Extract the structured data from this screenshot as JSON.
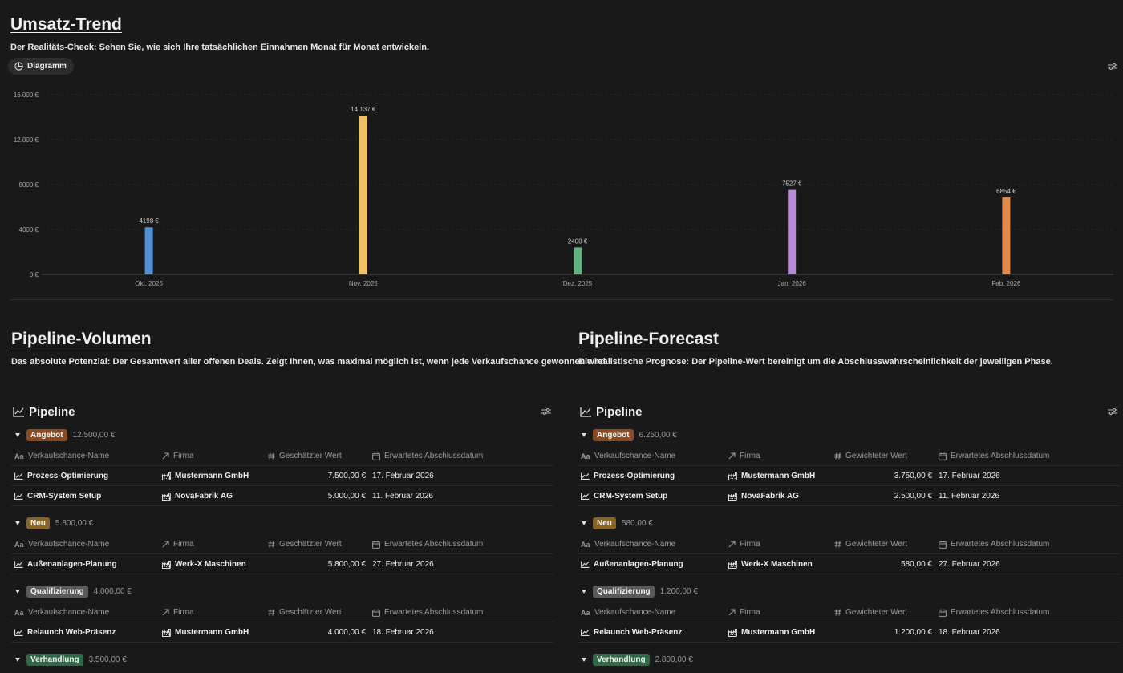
{
  "trend": {
    "title": "Umsatz-Trend",
    "description": "Der Realitäts-Check: Sehen Sie, wie sich Ihre tatsächlichen Einnahmen Monat für Monat entwickeln.",
    "view_label": "Diagramm"
  },
  "chart_data": {
    "type": "bar",
    "categories": [
      "Okt. 2025",
      "Nov. 2025",
      "Dez. 2025",
      "Jan. 2026",
      "Feb. 2026"
    ],
    "values": [
      4198,
      14137,
      2400,
      7527,
      6854
    ],
    "value_labels": [
      "4198 €",
      "14.137 €",
      "2400 €",
      "7527 €",
      "6854 €"
    ],
    "colors": [
      "#4e8fd8",
      "#f0c062",
      "#62b27f",
      "#b98ad9",
      "#e08b4c"
    ],
    "yticks": [
      0,
      4000,
      8000,
      12000,
      16000
    ],
    "ytick_labels": [
      "0 €",
      "4000 €",
      "8000 €",
      "12.000 €",
      "16.000 €"
    ],
    "ylim": [
      0,
      16000
    ],
    "grid": true,
    "title": "",
    "xlabel": "",
    "ylabel": ""
  },
  "volumen": {
    "title": "Pipeline-Volumen",
    "description": "Das absolute Potenzial: Der Gesamtwert aller offenen Deals. Zeigt Ihnen, was maximal möglich ist, wenn jede Verkaufschance gewonnen wird.",
    "board_title": "Pipeline",
    "columns": [
      "Verkaufschance-Name",
      "Firma",
      "Geschätzter Wert",
      "Erwartetes Abschlussdatum"
    ],
    "groups": [
      {
        "label": "Angebot",
        "color": "#8c4a21",
        "sum": "12.500,00 €",
        "rows": [
          {
            "name": "Prozess-Optimierung",
            "firma": "Mustermann GmbH",
            "wert": "7.500,00 €",
            "datum": "17. Februar 2026"
          },
          {
            "name": "CRM-System Setup",
            "firma": "NovaFabrik AG",
            "wert": "5.000,00 €",
            "datum": "11. Februar 2026"
          }
        ]
      },
      {
        "label": "Neu",
        "color": "#8a6425",
        "sum": "5.800,00 €",
        "rows": [
          {
            "name": "Außenanlagen-Planung",
            "firma": "Werk-X Maschinen",
            "wert": "5.800,00 €",
            "datum": "27. Februar 2026"
          }
        ]
      },
      {
        "label": "Qualifizierung",
        "color": "#5a5a5a",
        "sum": "4.000,00 €",
        "rows": [
          {
            "name": "Relaunch Web-Präsenz",
            "firma": "Mustermann GmbH",
            "wert": "4.000,00 €",
            "datum": "18. Februar 2026"
          }
        ]
      },
      {
        "label": "Verhandlung",
        "color": "#2f6a47",
        "sum": "3.500,00 €",
        "rows": []
      }
    ]
  },
  "forecast": {
    "title": "Pipeline-Forecast",
    "description": "Die realistische Prognose: Der Pipeline-Wert bereinigt um die Abschlusswahrscheinlichkeit der jeweiligen Phase.",
    "board_title": "Pipeline",
    "columns": [
      "Verkaufschance-Name",
      "Firma",
      "Gewichteter Wert",
      "Erwartetes Abschlussdatum"
    ],
    "groups": [
      {
        "label": "Angebot",
        "color": "#8c4a21",
        "sum": "6.250,00 €",
        "rows": [
          {
            "name": "Prozess-Optimierung",
            "firma": "Mustermann GmbH",
            "wert": "3.750,00 €",
            "datum": "17. Februar 2026"
          },
          {
            "name": "CRM-System Setup",
            "firma": "NovaFabrik AG",
            "wert": "2.500,00 €",
            "datum": "11. Februar 2026"
          }
        ]
      },
      {
        "label": "Neu",
        "color": "#8a6425",
        "sum": "580,00 €",
        "rows": [
          {
            "name": "Außenanlagen-Planung",
            "firma": "Werk-X Maschinen",
            "wert": "580,00 €",
            "datum": "27. Februar 2026"
          }
        ]
      },
      {
        "label": "Qualifizierung",
        "color": "#5a5a5a",
        "sum": "1.200,00 €",
        "rows": [
          {
            "name": "Relaunch Web-Präsenz",
            "firma": "Mustermann GmbH",
            "wert": "1.200,00 €",
            "datum": "18. Februar 2026"
          }
        ]
      },
      {
        "label": "Verhandlung",
        "color": "#2f6a47",
        "sum": "2.800,00 €",
        "rows": []
      }
    ]
  }
}
